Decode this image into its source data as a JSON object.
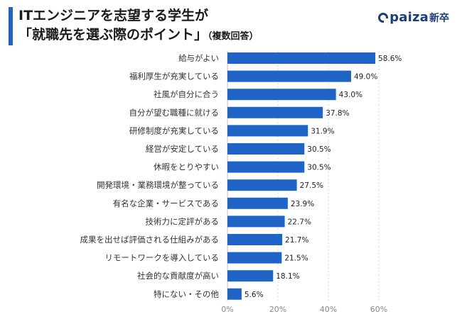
{
  "header": {
    "title_line1": "ITエンジニアを志望する学生が",
    "title_line2": "「就職先を選ぶ際のポイント」",
    "title_suffix": "（複数回答）",
    "logo_name": "paiza",
    "logo_suffix": "新卒"
  },
  "colors": {
    "bar": "#1f63c6",
    "grid": "#d9d9d9",
    "accent": "#1f63c6"
  },
  "chart_data": {
    "type": "bar",
    "orientation": "horizontal",
    "categories": [
      "給与がよい",
      "福利厚生が充実している",
      "社風が自分に合う",
      "自分が望む職種に就ける",
      "研修制度が充実している",
      "経営が安定している",
      "休暇をとりやすい",
      "開発環境・業務環境が整っている",
      "有名な企業・サービスである",
      "技術力に定評がある",
      "成果を出せば評価される仕組みがある",
      "リモートワークを導入している",
      "社会的な貢献度が高い",
      "特にない・その他"
    ],
    "values": [
      58.6,
      49.0,
      43.0,
      37.8,
      31.9,
      30.5,
      30.5,
      27.5,
      23.9,
      22.7,
      21.7,
      21.5,
      18.1,
      5.6
    ],
    "value_labels": [
      "58.6%",
      "49.0%",
      "43.0%",
      "37.8%",
      "31.9%",
      "30.5%",
      "30.5%",
      "27.5%",
      "23.9%",
      "22.7%",
      "21.7%",
      "21.5%",
      "18.1%",
      "5.6%"
    ],
    "xlim": [
      0,
      60
    ],
    "xticks": [
      0,
      20,
      40,
      60
    ],
    "xtick_labels": [
      "0%",
      "20%",
      "40%",
      "60%"
    ],
    "grid": true,
    "title": "",
    "xlabel": "",
    "ylabel": ""
  }
}
